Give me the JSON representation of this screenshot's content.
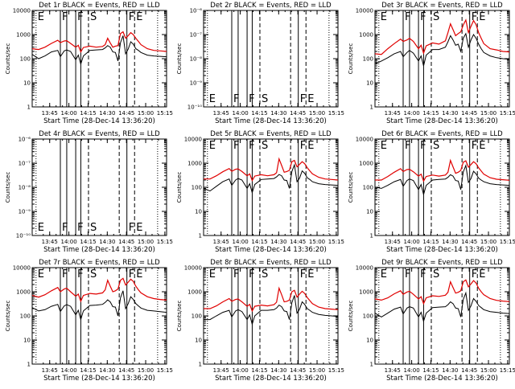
{
  "figure": {
    "common": {
      "ylabel": "Counts/sec",
      "xlabel": "Start Time (28-Dec-14 13:36:20)",
      "x_tick_labels": [
        "13:45",
        "14:00",
        "14:15",
        "14:30",
        "14:45",
        "15:00",
        "15:15"
      ],
      "x_range_minutes": [
        -5,
        100
      ],
      "x_tick_minutes": [
        8.67,
        23.67,
        38.67,
        53.67,
        68.67,
        83.67,
        98.67
      ],
      "colors": {
        "events": "#000000",
        "lld": "#e00000",
        "frame": "#000000"
      }
    },
    "panels": [
      {
        "title": "Det 1r BLACK = Events, RED = LLD",
        "has_data": true,
        "scale": "log",
        "y_range": [
          1,
          10000
        ],
        "y_tick_labels": [
          "1",
          "10",
          "100",
          "1000",
          "10000"
        ]
      },
      {
        "title": "Det 2r BLACK = Events, RED = LLD",
        "has_data": false,
        "scale": "log",
        "y_range": [
          1e-10,
          1e-06
        ],
        "y_tick_labels": [
          "10⁻¹⁰",
          "10⁻⁹",
          "10⁻⁸",
          "10⁻⁷",
          "10⁻⁶"
        ]
      },
      {
        "title": "Det 3r BLACK = Events, RED = LLD",
        "has_data": true,
        "scale": "log",
        "y_range": [
          1,
          10000
        ],
        "y_tick_labels": [
          "1",
          "10",
          "100",
          "1000",
          "10000"
        ]
      },
      {
        "title": "Det 4r BLACK = Events, RED = LLD",
        "has_data": false,
        "scale": "log",
        "y_range": [
          1e-10,
          1e-06
        ],
        "y_tick_labels": [
          "10⁻¹⁰",
          "10⁻⁹",
          "10⁻⁸",
          "10⁻⁷",
          "10⁻⁶"
        ]
      },
      {
        "title": "Det 5r BLACK = Events, RED = LLD",
        "has_data": true,
        "scale": "log",
        "y_range": [
          1,
          10000
        ],
        "y_tick_labels": [
          "1",
          "10",
          "100",
          "1000",
          "10000"
        ]
      },
      {
        "title": "Det 6r BLACK = Events, RED = LLD",
        "has_data": true,
        "scale": "log",
        "y_range": [
          1,
          10000
        ],
        "y_tick_labels": [
          "1",
          "10",
          "100",
          "1000",
          "10000"
        ]
      },
      {
        "title": "Det 7r BLACK = Events, RED = LLD",
        "has_data": true,
        "scale": "log",
        "y_range": [
          1,
          10000
        ],
        "y_tick_labels": [
          "1",
          "10",
          "100",
          "1000",
          "10000"
        ]
      },
      {
        "title": "Det 8r BLACK = Events, RED = LLD",
        "has_data": true,
        "scale": "log",
        "y_range": [
          1,
          10000
        ],
        "y_tick_labels": [
          "1",
          "10",
          "100",
          "1000",
          "10000"
        ]
      },
      {
        "title": "Det 9r BLACK = Events, RED = LLD",
        "has_data": true,
        "scale": "log",
        "y_range": [
          1,
          10000
        ],
        "y_tick_labels": [
          "1",
          "10",
          "100",
          "1000",
          "10000"
        ]
      }
    ]
  },
  "chart_data": {
    "type": "line",
    "x_unit": "minutes since 13:36:20",
    "annotation_lines": [
      {
        "x": -2,
        "style": "dotted",
        "letter": "E"
      },
      {
        "x": 17,
        "style": "solid",
        "letter": "F"
      },
      {
        "x": 22,
        "style": "solid",
        "letter": null
      },
      {
        "x": 29,
        "style": "solid",
        "letter": "F"
      },
      {
        "x": 33,
        "style": "solid",
        "letter": null
      },
      {
        "x": 39,
        "style": "dashed",
        "letter": "S"
      },
      {
        "x": 63,
        "style": "dashed",
        "letter": null
      },
      {
        "x": 69,
        "style": "solid",
        "letter": "F"
      },
      {
        "x": 75,
        "style": "dashed",
        "letter": "E"
      },
      {
        "x": 93,
        "style": "dotted",
        "letter": null
      }
    ],
    "series_x": [
      -5,
      0,
      5,
      10,
      15,
      17,
      20,
      22,
      25,
      29,
      31,
      33,
      35,
      40,
      45,
      50,
      52,
      54,
      56,
      58,
      60,
      62,
      64,
      66,
      68,
      70,
      72,
      74,
      76,
      78,
      80,
      85,
      90,
      95,
      100
    ],
    "series_by_panel": [
      {
        "panel": "Det 1r",
        "events": [
          150,
          100,
          130,
          190,
          220,
          120,
          210,
          230,
          200,
          90,
          140,
          60,
          130,
          220,
          230,
          240,
          280,
          350,
          300,
          190,
          180,
          80,
          460,
          900,
          160,
          250,
          500,
          400,
          260,
          220,
          180,
          140,
          130,
          125,
          120
        ],
        "lld": [
          260,
          240,
          300,
          430,
          580,
          460,
          540,
          560,
          430,
          300,
          360,
          190,
          290,
          330,
          300,
          320,
          380,
          700,
          450,
          300,
          330,
          350,
          1100,
          1300,
          700,
          900,
          1200,
          1000,
          700,
          520,
          380,
          260,
          220,
          210,
          200
        ]
      },
      {
        "panel": "Det 2r",
        "events": null,
        "lld": null
      },
      {
        "panel": "Det 3r",
        "events": [
          60,
          80,
          110,
          160,
          200,
          120,
          180,
          220,
          170,
          80,
          130,
          50,
          140,
          240,
          240,
          300,
          500,
          900,
          600,
          360,
          400,
          200,
          700,
          1100,
          300,
          600,
          1000,
          700,
          400,
          260,
          180,
          130,
          110,
          100,
          95
        ],
        "lld": [
          160,
          150,
          260,
          420,
          650,
          520,
          600,
          700,
          520,
          260,
          360,
          170,
          340,
          450,
          400,
          550,
          1200,
          2800,
          1600,
          900,
          1100,
          1300,
          2500,
          4000,
          1200,
          2200,
          3800,
          2600,
          1200,
          700,
          420,
          260,
          230,
          200,
          190
        ]
      },
      {
        "panel": "Det 4r",
        "events": null,
        "lld": null
      },
      {
        "panel": "Det 5r",
        "events": [
          90,
          70,
          110,
          170,
          220,
          120,
          200,
          230,
          200,
          90,
          140,
          60,
          130,
          210,
          220,
          230,
          270,
          340,
          300,
          200,
          190,
          90,
          450,
          850,
          170,
          240,
          480,
          380,
          250,
          210,
          170,
          140,
          130,
          125,
          120
        ],
        "lld": [
          220,
          220,
          300,
          440,
          600,
          460,
          560,
          580,
          450,
          300,
          360,
          190,
          290,
          330,
          300,
          330,
          400,
          1500,
          800,
          420,
          450,
          500,
          1150,
          1300,
          700,
          900,
          1150,
          950,
          650,
          480,
          360,
          260,
          220,
          210,
          200
        ]
      },
      {
        "panel": "Det 6r",
        "events": [
          100,
          90,
          120,
          170,
          210,
          110,
          190,
          220,
          190,
          80,
          130,
          50,
          120,
          200,
          210,
          220,
          260,
          330,
          290,
          190,
          180,
          80,
          430,
          800,
          160,
          230,
          460,
          360,
          240,
          200,
          170,
          140,
          130,
          125,
          120
        ],
        "lld": [
          200,
          200,
          280,
          420,
          590,
          450,
          540,
          560,
          440,
          290,
          350,
          180,
          280,
          320,
          290,
          320,
          420,
          1300,
          700,
          380,
          420,
          500,
          1100,
          1250,
          680,
          880,
          1150,
          950,
          640,
          470,
          350,
          250,
          215,
          205,
          195
        ]
      },
      {
        "panel": "Det 7r",
        "events": [
          220,
          160,
          180,
          250,
          300,
          150,
          260,
          290,
          250,
          110,
          170,
          70,
          160,
          270,
          280,
          300,
          360,
          460,
          380,
          240,
          230,
          100,
          560,
          1100,
          200,
          320,
          620,
          480,
          320,
          260,
          210,
          170,
          160,
          150,
          140
        ],
        "lld": [
          700,
          600,
          750,
          1100,
          1500,
          1000,
          1300,
          1400,
          1000,
          650,
          800,
          400,
          700,
          850,
          800,
          900,
          1200,
          3000,
          1700,
          1000,
          1100,
          1300,
          3000,
          3600,
          1900,
          2500,
          3300,
          2700,
          1700,
          1200,
          900,
          620,
          520,
          480,
          450
        ]
      },
      {
        "panel": "Det 8r",
        "events": [
          70,
          70,
          100,
          140,
          170,
          90,
          160,
          180,
          150,
          70,
          110,
          45,
          100,
          170,
          170,
          180,
          210,
          280,
          240,
          160,
          150,
          70,
          350,
          700,
          130,
          190,
          380,
          300,
          200,
          170,
          140,
          115,
          105,
          100,
          95
        ],
        "lld": [
          200,
          200,
          260,
          380,
          520,
          400,
          480,
          500,
          380,
          250,
          300,
          160,
          250,
          280,
          260,
          290,
          370,
          1400,
          750,
          380,
          400,
          450,
          1000,
          1150,
          600,
          800,
          1050,
          850,
          580,
          430,
          320,
          230,
          200,
          190,
          180
        ]
      },
      {
        "panel": "Det 9r",
        "events": [
          130,
          90,
          130,
          190,
          230,
          120,
          210,
          240,
          210,
          90,
          140,
          60,
          130,
          220,
          230,
          240,
          290,
          380,
          320,
          210,
          200,
          90,
          480,
          900,
          170,
          260,
          520,
          400,
          270,
          220,
          180,
          150,
          140,
          130,
          125
        ],
        "lld": [
          500,
          450,
          560,
          820,
          1100,
          780,
          980,
          1050,
          780,
          500,
          620,
          320,
          560,
          680,
          640,
          720,
          950,
          2600,
          1500,
          880,
          950,
          1100,
          2600,
          3100,
          1600,
          2100,
          2900,
          2300,
          1400,
          1000,
          760,
          520,
          440,
          410,
          390
        ]
      }
    ]
  }
}
